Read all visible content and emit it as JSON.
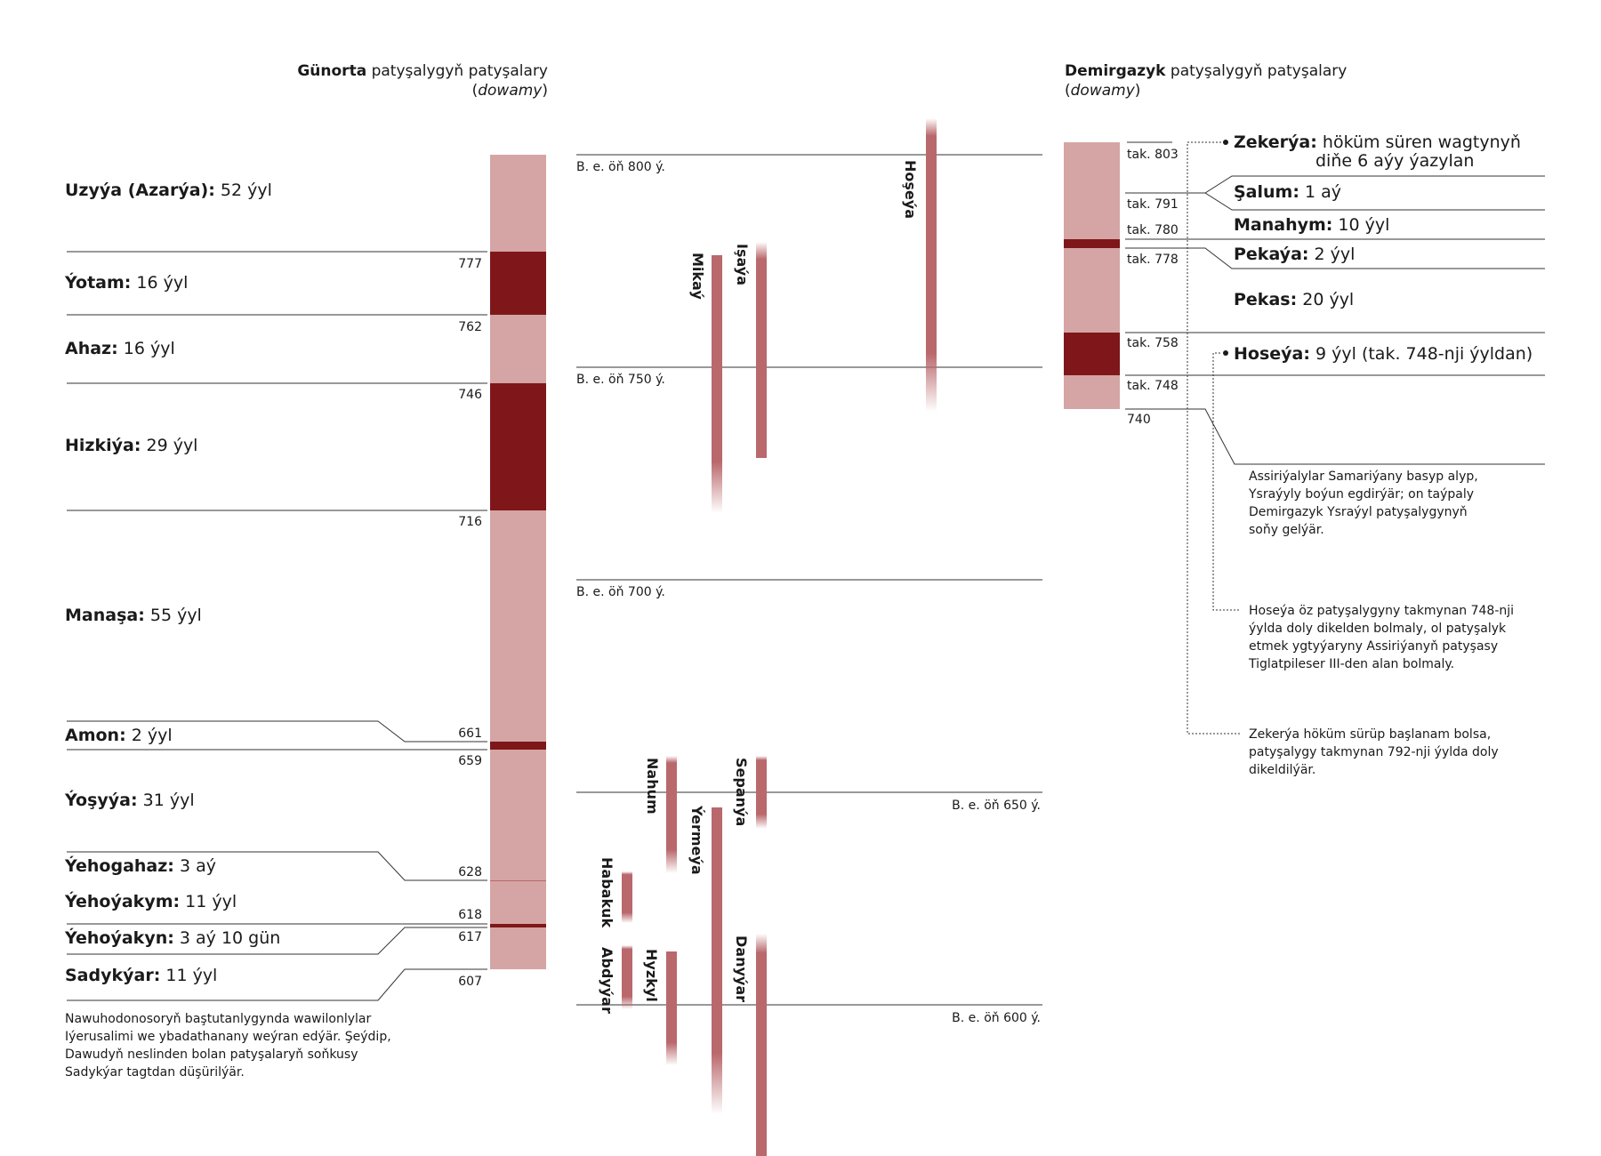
{
  "colors": {
    "light": "#d4a5a4",
    "dark": "#7f171a",
    "prophet": "#b9686c",
    "line": "#333333"
  },
  "south": {
    "header_bold": "Günorta",
    "header_rest": " patyşalygyň patyşalary",
    "header_sub": "dowamy",
    "kings": [
      {
        "name": "Uzyýa (Azarýa):",
        "reign": " 52 ýyl"
      },
      {
        "name": "Ýotam:",
        "reign": " 16 ýyl"
      },
      {
        "name": "Ahaz:",
        "reign": " 16 ýyl"
      },
      {
        "name": "Hizkiýa:",
        "reign": " 29 ýyl"
      },
      {
        "name": "Manaşa:",
        "reign": " 55 ýyl"
      },
      {
        "name": "Amon:",
        "reign": " 2 ýyl"
      },
      {
        "name": "Ýoşyýa:",
        "reign": " 31 ýyl"
      },
      {
        "name": "Ýehogahaz:",
        "reign": " 3 aý"
      },
      {
        "name": "Ýehoýakym:",
        "reign": " 11 ýyl"
      },
      {
        "name": "Ýehoýakyn:",
        "reign": " 3 aý 10 gün"
      },
      {
        "name": "Sadykýar:",
        "reign": " 11 ýyl"
      }
    ],
    "years": [
      "777",
      "762",
      "746",
      "716",
      "661",
      "659",
      "628",
      "618",
      "617",
      "607"
    ],
    "note": [
      "Nawuhodonosoryň baştutanlygynda wawilonlylar",
      "Iýerusalimi we ybadathanany weýran edýär. Şeýdip,",
      "Dawudyň neslinden bolan patyşalaryň soňkusy",
      "Sadykýar tagtdan düşürilýär."
    ]
  },
  "eras": [
    "B. e. öň 800 ý.",
    "B. e. öň 750 ý.",
    "B. e. öň 700 ý.",
    "B. e. öň 650 ý.",
    "B. e. öň 600 ý."
  ],
  "prophets": [
    "Hoşeýa",
    "Mikaý",
    "Işaýa",
    "Nahum",
    "Sepanýa",
    "Ýermeýa",
    "Habakuk",
    "Abdyýar",
    "Hyzkyl",
    "Danyýar"
  ],
  "north": {
    "header_bold": "Demirgazyk",
    "header_rest": " patyşalygyň patyşalary",
    "header_sub": "dowamy",
    "years": [
      "tak. 803",
      "tak. 791",
      "tak. 780",
      "tak. 778",
      "tak. 758",
      "tak. 748",
      "740"
    ],
    "kings": [
      {
        "name": "Zekerýa:",
        "reign": " höküm süren wagtynyň",
        "reign2": "diňe 6 aýy ýazylan"
      },
      {
        "name": "Şalum:",
        "reign": " 1 aý"
      },
      {
        "name": "Manahym:",
        "reign": " 10 ýyl"
      },
      {
        "name": "Pekaýa:",
        "reign": " 2 ýyl"
      },
      {
        "name": "Pekas:",
        "reign": " 20 ýyl"
      },
      {
        "name": "Hoseýa:",
        "reign": " 9 ýyl (tak. 748-nji ýyldan)"
      }
    ],
    "notes": [
      [
        "Assiriýalylar Samariýany basyp alyp,",
        "Ysraýyly boýun egdirýär; on taýpaly",
        "Demirgazyk Ysraýyl patyşalygynyň",
        "soňy gelýär."
      ],
      [
        "Hoseýa öz patyşalygyny takmynan 748-nji",
        "ýylda doly dikelden bolmaly, ol patyşalyk",
        "etmek ygtyýaryny Assiriýanyň patyşasy",
        "Tiglatpileser III-den alan bolmaly."
      ],
      [
        "Zekerýa höküm sürüp başlanam bolsa,",
        "patyşalygy takmynan 792-nji ýylda doly",
        "dikeldilýär."
      ]
    ]
  }
}
